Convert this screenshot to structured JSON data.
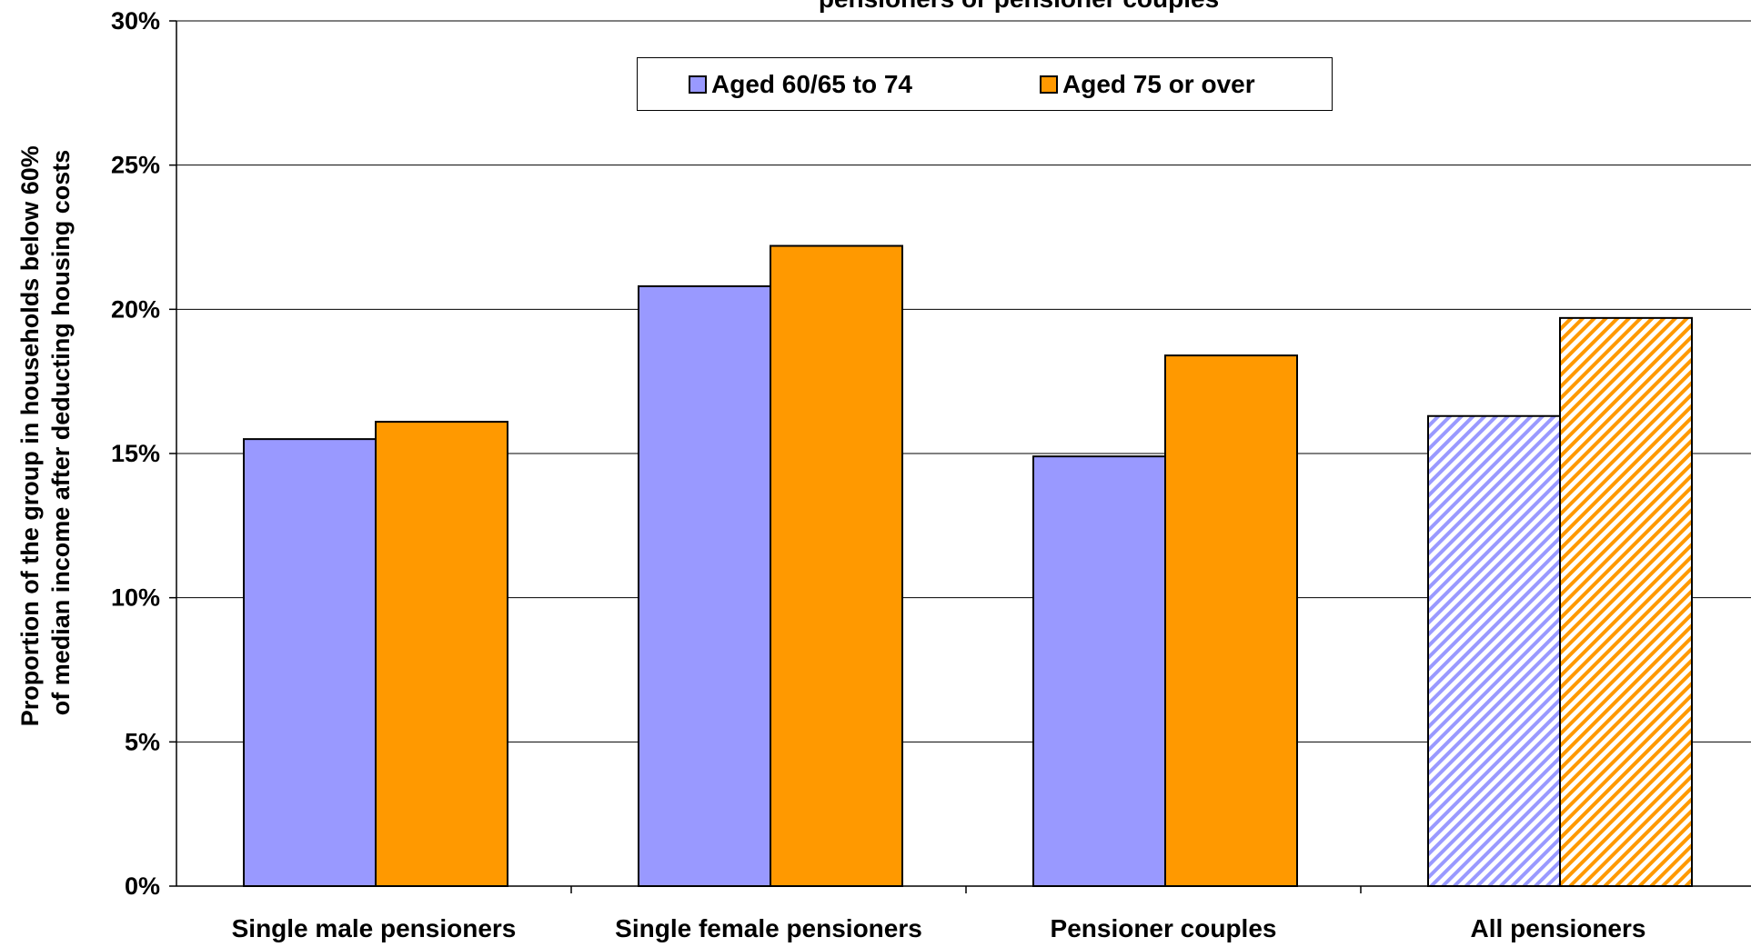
{
  "chart_data": {
    "type": "bar",
    "title": "pensioners or pensioner couples",
    "xlabel": "",
    "ylabel": "Proportion of the group in households below 60% of median income after deducting housing costs",
    "ylabel_lines": [
      "Proportion of the group in households below 60%",
      "of median income after deducting housing costs"
    ],
    "ylim": [
      0,
      30
    ],
    "y_ticks": [
      0,
      5,
      10,
      15,
      20,
      25,
      30
    ],
    "y_tick_labels": [
      "0%",
      "5%",
      "10%",
      "15%",
      "20%",
      "25%",
      "30%"
    ],
    "categories": [
      "Single male pensioners",
      "Single female pensioners",
      "Pensioner couples",
      "All pensioners"
    ],
    "series": [
      {
        "name": "Aged 60/65 to 74",
        "color": "#9999ff",
        "values": [
          15.5,
          20.8,
          14.9,
          16.3
        ]
      },
      {
        "name": "Aged 75 or over",
        "color": "#ff9900",
        "values": [
          16.1,
          22.2,
          18.4,
          19.7
        ]
      }
    ],
    "hatched_categories": [
      "All pensioners"
    ],
    "grid": true,
    "legend_position": "top-center"
  }
}
